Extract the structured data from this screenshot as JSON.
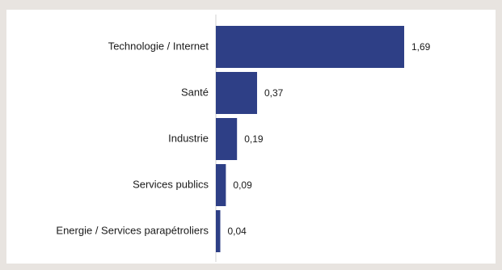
{
  "colors": {
    "background": "#e8e4e0",
    "panel": "#ffffff",
    "bar": "#2e3f86",
    "axis": "#d0d0d0",
    "text": "#1a1a1a"
  },
  "chart_data": {
    "type": "bar",
    "orientation": "horizontal",
    "categories": [
      "Technologie / Internet",
      "Santé",
      "Industrie",
      "Services publics",
      "Energie / Services parapétroliers"
    ],
    "values": [
      1.69,
      0.37,
      0.19,
      0.09,
      0.04
    ],
    "value_labels": [
      "1,69",
      "0,37",
      "0,19",
      "0,09",
      "0,04"
    ],
    "title": "",
    "xlabel": "",
    "ylabel": "",
    "xlim": [
      0,
      1.69
    ],
    "grid": false,
    "legend": "none"
  }
}
